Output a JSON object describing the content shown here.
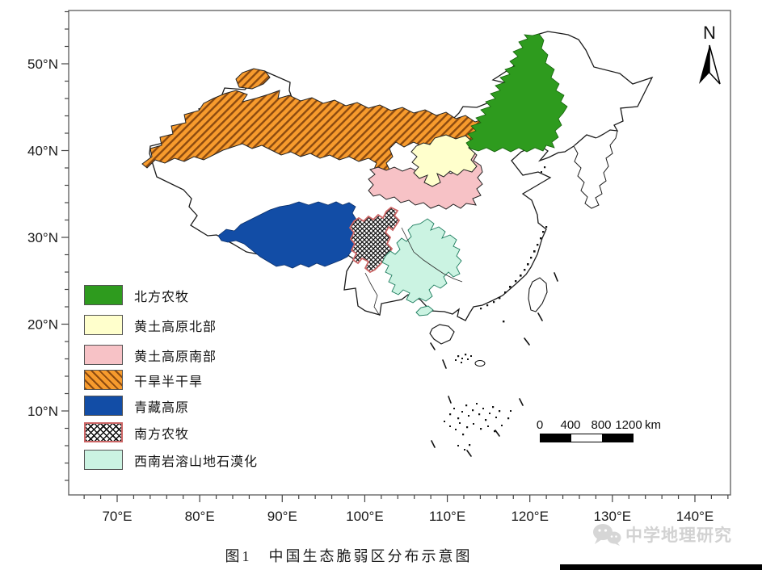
{
  "figure": {
    "caption": "图1　中国生态脆弱区分布示意图",
    "watermark": "中学地理研究"
  },
  "north_arrow": {
    "label": "N"
  },
  "scale_bar": {
    "labels": [
      "0",
      "400",
      "800",
      "1200"
    ],
    "unit": "km"
  },
  "axes": {
    "x_tick_labels": [
      "70°E",
      "80°E",
      "90°E",
      "100°E",
      "110°E",
      "120°E",
      "130°E",
      "140°E"
    ],
    "y_tick_labels": [
      "50°N",
      "40°N",
      "30°N",
      "20°N",
      "10°N"
    ]
  },
  "legend": {
    "items": [
      {
        "label": "北方农牧",
        "color": "#2E9B1E",
        "pattern": "solid"
      },
      {
        "label": "黄土高原北部",
        "color": "#FFFFCC",
        "pattern": "solid"
      },
      {
        "label": "黄土高原南部",
        "color": "#F7C2C6",
        "pattern": "solid"
      },
      {
        "label": "干旱半干旱",
        "color": "#F79B2D",
        "pattern": "diagonal-hatch",
        "hatch_color": "#8B4A10"
      },
      {
        "label": "青藏高原",
        "color": "#124DA6",
        "pattern": "solid"
      },
      {
        "label": "南方农牧",
        "color": "#FFFFFF",
        "pattern": "crosshatch",
        "hatch_color": "#111111",
        "border_color": "#CC6666"
      },
      {
        "label": "西南岩溶山地石漠化",
        "color": "#CBF3E2",
        "pattern": "solid"
      }
    ]
  }
}
